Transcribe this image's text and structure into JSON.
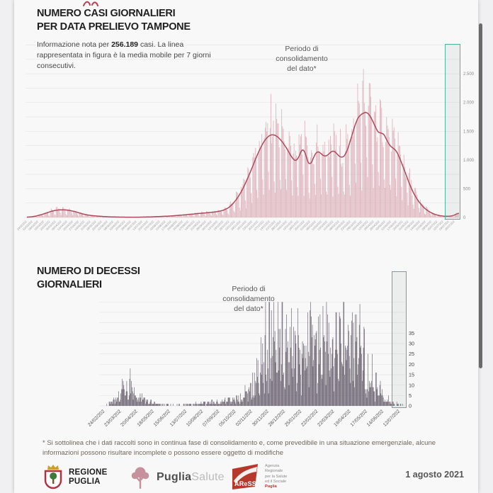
{
  "header": {
    "title_line1": "NUMERO CASI GIORNALIERI",
    "title_line2": "PER DATA PRELIEVO TAMPONE",
    "subtitle_prefix": "Informazione nota per ",
    "subtitle_bold": "256.189",
    "subtitle_suffix": " casi. La linea rappresentata in figura è la media mobile per 7 giorni consecutivi."
  },
  "deaths_header": {
    "title_line1": "NUMERO DI DECESSI",
    "title_line2": "GIORNALIERI"
  },
  "annotation": {
    "line1": "Periodo di",
    "line2": "consolidamento",
    "line3": "del dato*"
  },
  "footnote": "* Si sottolinea che i dati raccolti sono in continua fase di consolidamento e, come prevedibile in una situazione emergenziale, alcune informazioni possono risultare incomplete o possono essere oggetto di modifiche",
  "footer": {
    "regione_line1": "REGIONE",
    "regione_line2": "PUGLIA",
    "puglia_salute_bold": "Puglia",
    "puglia_salute_light": "Salute",
    "aress_logo_text": "AReSS",
    "aress_line1": "Agenzia",
    "aress_line2": "Regionale",
    "aress_line3": "per la Salute",
    "aress_line4": "ed il Sociale",
    "aress_line5": "Puglia",
    "date": "1 agosto 2021"
  },
  "colors": {
    "cases_bar": "#d9a9b3",
    "cases_line": "#ad4a5e",
    "deaths_bar": "#5a5060",
    "consolidation_border": "#4fb3a3",
    "grid": "#e6e6e6"
  },
  "chart_data": [
    {
      "type": "bar+line",
      "title": "NUMERO CASI GIORNALIERI PER DATA PRELIEVO TAMPONE",
      "series_note": "barre = casi giornalieri, linea = media mobile 7 giorni",
      "start_date": "24/02/2020",
      "days": 523,
      "ylim": [
        0,
        3000
      ],
      "grid_step": 250,
      "y_ticks": [
        {
          "v": 0,
          "label": "0"
        },
        {
          "v": 500,
          "label": "500"
        },
        {
          "v": 1000,
          "label": "1.000"
        },
        {
          "v": 1500,
          "label": "1.500"
        },
        {
          "v": 2000,
          "label": "2.000"
        },
        {
          "v": 2500,
          "label": "2.500"
        }
      ],
      "x_labels": [
        "24/02/202",
        "02/03/202",
        "09/03/202",
        "16/03/202",
        "23/03/202",
        "30/03/202",
        "06/04/202",
        "13/04/202",
        "20/04/202",
        "27/04/202",
        "04/05/202",
        "11/05/202",
        "18/05/202",
        "25/05/202",
        "01/06/202",
        "08/06/202",
        "15/06/202",
        "22/06/202",
        "29/06/202",
        "06/07/202",
        "13/07/202",
        "20/07/202",
        "27/07/202",
        "03/08/202",
        "10/08/202",
        "17/08/202",
        "24/08/202",
        "31/08/202",
        "07/09/202",
        "14/09/202",
        "21/09/202",
        "28/09/202",
        "05/10/202",
        "12/10/202",
        "19/10/202",
        "26/10/202",
        "02/11/202",
        "09/11/202",
        "16/11/202",
        "23/11/202",
        "30/11/202",
        "07/12/202",
        "14/12/202",
        "21/12/202",
        "28/12/202",
        "04/01/202",
        "11/01/202",
        "18/01/202",
        "25/01/202",
        "01/02/202",
        "08/02/202",
        "15/02/202",
        "22/02/202",
        "01/03/202",
        "08/03/202",
        "15/03/202",
        "22/03/202",
        "29/03/202",
        "05/04/202",
        "12/04/202",
        "19/04/202",
        "26/04/202",
        "03/05/202",
        "10/05/202",
        "17/05/202",
        "24/05/202",
        "31/05/202",
        "07/06/202",
        "14/06/202",
        "21/06/202",
        "28/06/202",
        "05/07/202",
        "12/07/202",
        "19/07/202",
        "26/07/202"
      ],
      "ma_knots": [
        [
          0,
          3
        ],
        [
          10,
          20
        ],
        [
          20,
          60
        ],
        [
          30,
          110
        ],
        [
          37,
          130
        ],
        [
          43,
          135
        ],
        [
          50,
          127
        ],
        [
          58,
          103
        ],
        [
          65,
          72
        ],
        [
          72,
          46
        ],
        [
          80,
          30
        ],
        [
          90,
          19
        ],
        [
          100,
          11
        ],
        [
          110,
          7
        ],
        [
          122,
          5
        ],
        [
          135,
          5
        ],
        [
          148,
          9
        ],
        [
          160,
          16
        ],
        [
          172,
          24
        ],
        [
          183,
          35
        ],
        [
          194,
          50
        ],
        [
          205,
          65
        ],
        [
          215,
          78
        ],
        [
          224,
          90
        ],
        [
          231,
          102
        ],
        [
          238,
          125
        ],
        [
          245,
          175
        ],
        [
          252,
          280
        ],
        [
          259,
          430
        ],
        [
          266,
          640
        ],
        [
          273,
          880
        ],
        [
          280,
          1130
        ],
        [
          287,
          1330
        ],
        [
          294,
          1440
        ],
        [
          301,
          1435
        ],
        [
          308,
          1340
        ],
        [
          315,
          1190
        ],
        [
          322,
          1010
        ],
        [
          327,
          970
        ],
        [
          332,
          1160
        ],
        [
          335,
          1240
        ],
        [
          339,
          1000
        ],
        [
          342,
          870
        ],
        [
          346,
          1010
        ],
        [
          351,
          1170
        ],
        [
          356,
          1110
        ],
        [
          361,
          1050
        ],
        [
          366,
          1110
        ],
        [
          371,
          1180
        ],
        [
          376,
          1090
        ],
        [
          381,
          1030
        ],
        [
          386,
          1090
        ],
        [
          391,
          1310
        ],
        [
          396,
          1550
        ],
        [
          399,
          1700
        ],
        [
          403,
          1780
        ],
        [
          408,
          1820
        ],
        [
          412,
          1840
        ],
        [
          416,
          1750
        ],
        [
          420,
          1640
        ],
        [
          424,
          1500
        ],
        [
          427,
          1440
        ],
        [
          430,
          1500
        ],
        [
          434,
          1400
        ],
        [
          438,
          1270
        ],
        [
          442,
          1210
        ],
        [
          446,
          1190
        ],
        [
          450,
          1080
        ],
        [
          454,
          930
        ],
        [
          458,
          780
        ],
        [
          462,
          620
        ],
        [
          466,
          480
        ],
        [
          470,
          370
        ],
        [
          474,
          280
        ],
        [
          478,
          210
        ],
        [
          482,
          150
        ],
        [
          486,
          110
        ],
        [
          490,
          75
        ],
        [
          494,
          52
        ],
        [
          498,
          36
        ],
        [
          502,
          26
        ],
        [
          506,
          21
        ],
        [
          510,
          20
        ],
        [
          514,
          25
        ],
        [
          517,
          35
        ],
        [
          520,
          60
        ],
        [
          523,
          88
        ]
      ]
    },
    {
      "type": "bar",
      "title": "NUMERO DI DECESSI GIORNALIERI",
      "start_date": "24/02/2020",
      "days": 510,
      "ylim": [
        0,
        50
      ],
      "grid_step": 5,
      "y_ticks": [
        {
          "v": 0,
          "label": "0"
        },
        {
          "v": 5,
          "label": "5"
        },
        {
          "v": 10,
          "label": "10"
        },
        {
          "v": 15,
          "label": "15"
        },
        {
          "v": 20,
          "label": "20"
        },
        {
          "v": 25,
          "label": "25"
        },
        {
          "v": 30,
          "label": "30"
        },
        {
          "v": 35,
          "label": "35"
        }
      ],
      "x_labels": [
        "24/02/202",
        "23/03/202",
        "20/04/202",
        "18/05/202",
        "15/06/202",
        "13/07/202",
        "10/08/202",
        "07/09/202",
        "05/10/202",
        "02/11/202",
        "30/11/202",
        "28/12/202",
        "25/01/202",
        "22/02/202",
        "22/03/202",
        "19/04/202",
        "17/05/202",
        "14/06/202",
        "12/07/202"
      ],
      "ma_knots": [
        [
          0,
          0
        ],
        [
          15,
          2
        ],
        [
          25,
          5
        ],
        [
          32,
          9
        ],
        [
          38,
          10
        ],
        [
          45,
          8
        ],
        [
          52,
          6
        ],
        [
          58,
          5
        ],
        [
          65,
          4
        ],
        [
          72,
          2.5
        ],
        [
          80,
          1.5
        ],
        [
          90,
          1
        ],
        [
          100,
          0.6
        ],
        [
          115,
          0.4
        ],
        [
          130,
          0.4
        ],
        [
          150,
          0.8
        ],
        [
          170,
          1.2
        ],
        [
          190,
          1.8
        ],
        [
          210,
          2.4
        ],
        [
          225,
          3
        ],
        [
          238,
          4.5
        ],
        [
          248,
          7
        ],
        [
          256,
          11
        ],
        [
          264,
          17
        ],
        [
          272,
          24
        ],
        [
          280,
          30
        ],
        [
          288,
          34
        ],
        [
          296,
          36
        ],
        [
          303,
          35
        ],
        [
          310,
          33
        ],
        [
          317,
          30
        ],
        [
          324,
          28
        ],
        [
          330,
          26
        ],
        [
          335,
          28
        ],
        [
          340,
          30
        ],
        [
          345,
          28
        ],
        [
          350,
          26
        ],
        [
          356,
          27
        ],
        [
          362,
          28
        ],
        [
          368,
          26
        ],
        [
          374,
          25
        ],
        [
          380,
          27
        ],
        [
          386,
          25
        ],
        [
          392,
          26
        ],
        [
          398,
          29
        ],
        [
          404,
          31
        ],
        [
          410,
          33
        ],
        [
          416,
          32
        ],
        [
          422,
          30
        ],
        [
          428,
          27
        ],
        [
          434,
          24
        ],
        [
          440,
          22
        ],
        [
          446,
          19
        ],
        [
          452,
          16
        ],
        [
          458,
          12
        ],
        [
          464,
          9
        ],
        [
          470,
          6.5
        ],
        [
          476,
          4.5
        ],
        [
          482,
          3
        ],
        [
          488,
          2
        ],
        [
          494,
          1.2
        ],
        [
          500,
          0.8
        ],
        [
          505,
          0.5
        ],
        [
          510,
          0.4
        ]
      ]
    }
  ]
}
